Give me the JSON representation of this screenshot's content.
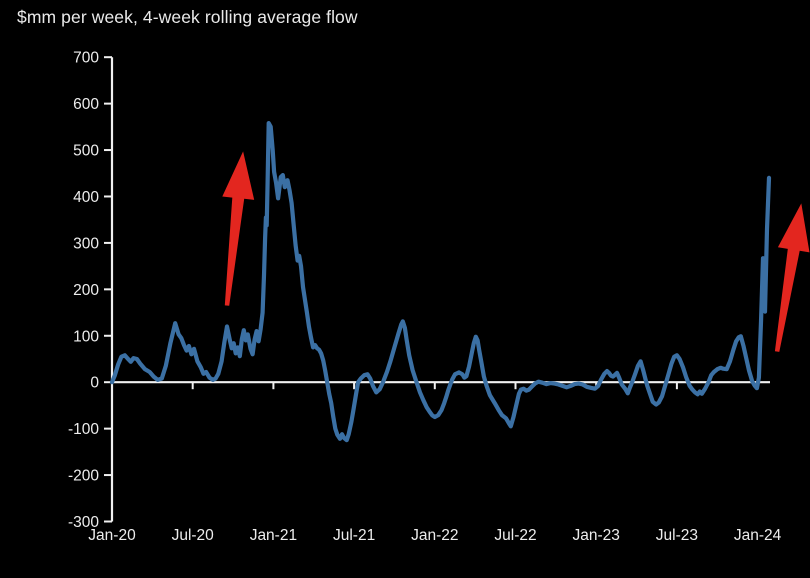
{
  "header": {
    "title": "$mm per week, 4-week rolling average flow"
  },
  "colors": {
    "background": "#000000",
    "line": "#3B70A4",
    "axis": "#F0F0F0",
    "text": "#EDEDED",
    "arrow": "#E3261F"
  },
  "chart_data": {
    "type": "line",
    "title": "$mm per week, 4-week rolling average flow",
    "ylabel": "$mm per week",
    "xlabel": "",
    "ylim": [
      -300,
      700
    ],
    "y_ticks": [
      700,
      600,
      500,
      400,
      300,
      200,
      100,
      0,
      -100,
      -200,
      -300
    ],
    "x_ticks": [
      {
        "label": "Jan-20",
        "m": 0
      },
      {
        "label": "Jul-20",
        "m": 6
      },
      {
        "label": "Jan-21",
        "m": 12
      },
      {
        "label": "Jul-21",
        "m": 18
      },
      {
        "label": "Jan-22",
        "m": 24
      },
      {
        "label": "Jul-22",
        "m": 30
      },
      {
        "label": "Jan-23",
        "m": 36
      },
      {
        "label": "Jul-23",
        "m": 42
      },
      {
        "label": "Jan-24",
        "m": 48
      }
    ],
    "x_unit": "months since Jan-2020 (m); labels are month-year dates",
    "grid": false,
    "legend": null,
    "zero_baseline_axis": true,
    "annotations": [
      {
        "type": "arrow",
        "name": "surge-arrow-2020",
        "color": "#E3261F",
        "tail": {
          "m": 8.55,
          "v": 165
        },
        "tip": {
          "m": 9.75,
          "v": 497
        }
      },
      {
        "type": "arrow",
        "name": "surge-arrow-2024",
        "color": "#E3261F",
        "tail": {
          "m": 49.45,
          "v": 66
        },
        "tip": {
          "m": 51.25,
          "v": 385
        }
      }
    ],
    "series": [
      {
        "name": "4-week rolling average flow ($mm per week)",
        "color": "#3B70A4",
        "points": [
          [
            0,
            0
          ],
          [
            0.2,
            14
          ],
          [
            0.45,
            38
          ],
          [
            0.7,
            55
          ],
          [
            0.95,
            58
          ],
          [
            1.2,
            50
          ],
          [
            1.4,
            44
          ],
          [
            1.6,
            52
          ],
          [
            1.85,
            50
          ],
          [
            2.1,
            40
          ],
          [
            2.45,
            28
          ],
          [
            2.8,
            22
          ],
          [
            3.1,
            12
          ],
          [
            3.4,
            5
          ],
          [
            3.7,
            8
          ],
          [
            4.0,
            35
          ],
          [
            4.35,
            85
          ],
          [
            4.7,
            127
          ],
          [
            4.95,
            103
          ],
          [
            5.15,
            95
          ],
          [
            5.35,
            80
          ],
          [
            5.55,
            68
          ],
          [
            5.72,
            78
          ],
          [
            5.9,
            60
          ],
          [
            6.1,
            72
          ],
          [
            6.35,
            45
          ],
          [
            6.6,
            32
          ],
          [
            6.8,
            18
          ],
          [
            7.0,
            22
          ],
          [
            7.25,
            10
          ],
          [
            7.5,
            5
          ],
          [
            7.7,
            8
          ],
          [
            7.9,
            18
          ],
          [
            8.15,
            45
          ],
          [
            8.35,
            85
          ],
          [
            8.55,
            120
          ],
          [
            8.75,
            92
          ],
          [
            8.9,
            73
          ],
          [
            9.05,
            84
          ],
          [
            9.2,
            62
          ],
          [
            9.35,
            75
          ],
          [
            9.5,
            56
          ],
          [
            9.65,
            92
          ],
          [
            9.8,
            112
          ],
          [
            9.95,
            90
          ],
          [
            10.1,
            103
          ],
          [
            10.3,
            72
          ],
          [
            10.45,
            60
          ],
          [
            10.6,
            92
          ],
          [
            10.75,
            110
          ],
          [
            10.9,
            88
          ],
          [
            11.05,
            114
          ],
          [
            11.2,
            150
          ],
          [
            11.3,
            230
          ],
          [
            11.38,
            310
          ],
          [
            11.44,
            355
          ],
          [
            11.5,
            338
          ],
          [
            11.56,
            420
          ],
          [
            11.65,
            558
          ],
          [
            11.8,
            550
          ],
          [
            11.95,
            500
          ],
          [
            12.05,
            453
          ],
          [
            12.2,
            429
          ],
          [
            12.35,
            396
          ],
          [
            12.55,
            442
          ],
          [
            12.7,
            446
          ],
          [
            12.85,
            420
          ],
          [
            13.05,
            435
          ],
          [
            13.2,
            414
          ],
          [
            13.35,
            386
          ],
          [
            13.5,
            340
          ],
          [
            13.65,
            295
          ],
          [
            13.8,
            262
          ],
          [
            13.92,
            272
          ],
          [
            14.05,
            250
          ],
          [
            14.2,
            205
          ],
          [
            14.35,
            177
          ],
          [
            14.5,
            149
          ],
          [
            14.65,
            119
          ],
          [
            14.8,
            95
          ],
          [
            14.95,
            75
          ],
          [
            15.1,
            80
          ],
          [
            15.25,
            73
          ],
          [
            15.4,
            70
          ],
          [
            15.55,
            62
          ],
          [
            15.7,
            47
          ],
          [
            15.85,
            25
          ],
          [
            16.0,
            0
          ],
          [
            16.15,
            -25
          ],
          [
            16.3,
            -45
          ],
          [
            16.45,
            -75
          ],
          [
            16.6,
            -100
          ],
          [
            16.75,
            -113
          ],
          [
            16.95,
            -122
          ],
          [
            17.1,
            -112
          ],
          [
            17.25,
            -120
          ],
          [
            17.45,
            -125
          ],
          [
            17.6,
            -112
          ],
          [
            17.8,
            -85
          ],
          [
            17.95,
            -60
          ],
          [
            18.15,
            -25
          ],
          [
            18.3,
            0
          ],
          [
            18.5,
            8
          ],
          [
            18.75,
            15
          ],
          [
            19.0,
            17
          ],
          [
            19.2,
            8
          ],
          [
            19.4,
            -8
          ],
          [
            19.65,
            -22
          ],
          [
            19.9,
            -15
          ],
          [
            20.15,
            0
          ],
          [
            20.45,
            23
          ],
          [
            20.7,
            45
          ],
          [
            21.0,
            75
          ],
          [
            21.3,
            105
          ],
          [
            21.5,
            124
          ],
          [
            21.62,
            131
          ],
          [
            21.78,
            117
          ],
          [
            21.9,
            92
          ],
          [
            22.1,
            58
          ],
          [
            22.35,
            26
          ],
          [
            22.55,
            8
          ],
          [
            22.7,
            -5
          ],
          [
            22.9,
            -22
          ],
          [
            23.15,
            -39
          ],
          [
            23.4,
            -54
          ],
          [
            23.65,
            -65
          ],
          [
            23.8,
            -71
          ],
          [
            24.0,
            -75
          ],
          [
            24.25,
            -71
          ],
          [
            24.5,
            -60
          ],
          [
            24.7,
            -45
          ],
          [
            24.85,
            -32
          ],
          [
            25.0,
            -17
          ],
          [
            25.15,
            -5
          ],
          [
            25.3,
            6
          ],
          [
            25.5,
            17
          ],
          [
            25.8,
            21
          ],
          [
            26.05,
            17
          ],
          [
            26.2,
            10
          ],
          [
            26.35,
            13
          ],
          [
            26.55,
            34
          ],
          [
            26.75,
            63
          ],
          [
            26.9,
            84
          ],
          [
            27.05,
            98
          ],
          [
            27.18,
            90
          ],
          [
            27.3,
            69
          ],
          [
            27.45,
            45
          ],
          [
            27.65,
            12
          ],
          [
            27.85,
            -8
          ],
          [
            28.1,
            -28
          ],
          [
            28.45,
            -45
          ],
          [
            28.75,
            -60
          ],
          [
            29.0,
            -71
          ],
          [
            29.3,
            -78
          ],
          [
            29.5,
            -88
          ],
          [
            29.65,
            -95
          ],
          [
            29.85,
            -75
          ],
          [
            30.05,
            -50
          ],
          [
            30.25,
            -25
          ],
          [
            30.4,
            -16
          ],
          [
            30.6,
            -14
          ],
          [
            30.8,
            -18
          ],
          [
            31.0,
            -16
          ],
          [
            31.2,
            -10
          ],
          [
            31.45,
            -3
          ],
          [
            31.7,
            1
          ],
          [
            32.0,
            -1
          ],
          [
            32.3,
            -4
          ],
          [
            32.6,
            -2
          ],
          [
            32.9,
            -3
          ],
          [
            33.2,
            -5
          ],
          [
            33.5,
            -8
          ],
          [
            33.8,
            -11
          ],
          [
            34.1,
            -8
          ],
          [
            34.4,
            -4
          ],
          [
            34.7,
            -3
          ],
          [
            35.0,
            -5
          ],
          [
            35.3,
            -10
          ],
          [
            35.6,
            -12
          ],
          [
            35.9,
            -14
          ],
          [
            36.15,
            -8
          ],
          [
            36.35,
            5
          ],
          [
            36.6,
            18
          ],
          [
            36.8,
            24
          ],
          [
            36.95,
            20
          ],
          [
            37.1,
            14
          ],
          [
            37.25,
            12
          ],
          [
            37.4,
            16
          ],
          [
            37.55,
            20
          ],
          [
            37.7,
            10
          ],
          [
            37.9,
            -5
          ],
          [
            38.15,
            -14
          ],
          [
            38.35,
            -24
          ],
          [
            38.5,
            -12
          ],
          [
            38.7,
            2
          ],
          [
            38.9,
            18
          ],
          [
            39.1,
            35
          ],
          [
            39.3,
            45
          ],
          [
            39.5,
            25
          ],
          [
            39.65,
            8
          ],
          [
            39.8,
            -8
          ],
          [
            40.0,
            -25
          ],
          [
            40.2,
            -42
          ],
          [
            40.45,
            -48
          ],
          [
            40.65,
            -44
          ],
          [
            40.9,
            -30
          ],
          [
            41.1,
            -10
          ],
          [
            41.35,
            15
          ],
          [
            41.6,
            40
          ],
          [
            41.8,
            55
          ],
          [
            42.0,
            58
          ],
          [
            42.2,
            50
          ],
          [
            42.45,
            32
          ],
          [
            42.7,
            10
          ],
          [
            42.95,
            -8
          ],
          [
            43.15,
            -16
          ],
          [
            43.35,
            -22
          ],
          [
            43.55,
            -26
          ],
          [
            43.7,
            -20
          ],
          [
            43.85,
            -25
          ],
          [
            44.1,
            -14
          ],
          [
            44.35,
            0
          ],
          [
            44.55,
            15
          ],
          [
            44.75,
            22
          ],
          [
            45.0,
            28
          ],
          [
            45.25,
            31
          ],
          [
            45.45,
            29
          ],
          [
            45.7,
            28
          ],
          [
            45.95,
            45
          ],
          [
            46.2,
            70
          ],
          [
            46.4,
            88
          ],
          [
            46.6,
            97
          ],
          [
            46.75,
            99
          ],
          [
            46.95,
            78
          ],
          [
            47.15,
            52
          ],
          [
            47.35,
            26
          ],
          [
            47.6,
            2
          ],
          [
            47.8,
            -8
          ],
          [
            47.95,
            -13
          ],
          [
            48.1,
            10
          ],
          [
            48.25,
            130
          ],
          [
            48.4,
            267
          ],
          [
            48.55,
            152
          ],
          [
            48.7,
            330
          ],
          [
            48.85,
            440
          ]
        ]
      }
    ]
  }
}
